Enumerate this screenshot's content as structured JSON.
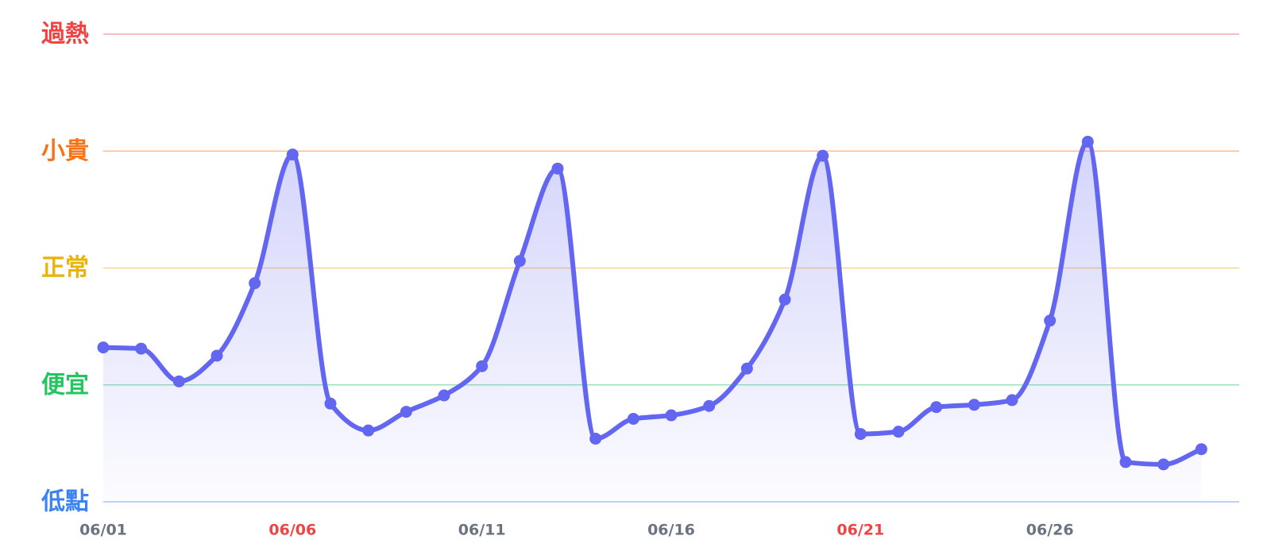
{
  "chart_data": {
    "type": "line",
    "categories": [
      "06/01",
      null,
      null,
      null,
      null,
      "06/06",
      null,
      null,
      null,
      null,
      "06/11",
      null,
      null,
      null,
      null,
      "06/16",
      null,
      null,
      null,
      null,
      "06/21",
      null,
      null,
      null,
      null,
      "06/26",
      null,
      null,
      null,
      null
    ],
    "category_label_color": "#6b7280",
    "highlighted_categories": [
      5,
      20
    ],
    "highlight_color": "#ef4444",
    "series": [
      {
        "color": "#6366f1",
        "values": [
          1.32,
          1.31,
          1.03,
          1.25,
          1.87,
          2.97,
          0.84,
          0.61,
          0.77,
          0.91,
          1.16,
          2.06,
          2.85,
          0.54,
          0.71,
          0.74,
          0.82,
          1.14,
          1.73,
          2.96,
          0.58,
          0.6,
          0.81,
          0.83,
          0.87,
          1.55,
          3.08,
          0.34,
          0.32,
          0.45
        ]
      }
    ],
    "ylim": [
      0,
      4
    ],
    "yticks": [
      {
        "value": 0,
        "label": "低點"
      },
      {
        "value": 1,
        "label": "便宜"
      },
      {
        "value": 2,
        "label": "正常"
      },
      {
        "value": 3,
        "label": "小貴"
      },
      {
        "value": 4,
        "label": "過熱"
      }
    ],
    "ytick_colors": [
      "#3b82f6",
      "#22c55e",
      "#eab308",
      "#f97316",
      "#ef4444"
    ],
    "grid": true
  }
}
